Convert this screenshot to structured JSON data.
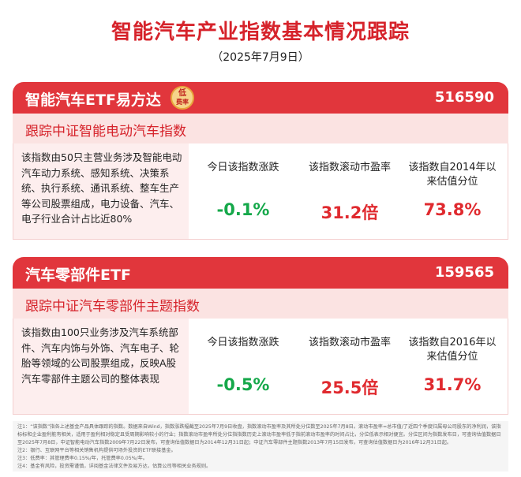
{
  "header": {
    "title": "智能汽车产业指数基本情况跟踪",
    "date": "（2025年7月9日）"
  },
  "colors": {
    "accent_red": "#e1363c",
    "title_red": "#d6232b",
    "light_pink": "#fbe3e2",
    "up_green": "#15a84a",
    "value_red": "#e02a2f"
  },
  "cards": [
    {
      "name": "智能汽车ETF易方达",
      "badge_line1": "低",
      "badge_line2": "费率",
      "code": "516590",
      "tracking": "跟踪中证智能电动汽车指数",
      "description": "该指数由50只主营业务涉及智能电动汽车动力系统、感知系统、决策系统、执行系统、通讯系统、整车生产等公司股票组成，电力设备、汽车、电子行业合计占比近80%",
      "metrics": [
        {
          "label": "今日该指数涨跌",
          "value": "-0.1%"
        },
        {
          "label": "该指数滚动市盈率",
          "value": "31.2倍"
        },
        {
          "label": "该指数自2014年以来估值分位",
          "value": "73.8%"
        }
      ]
    },
    {
      "name": "汽车零部件ETF",
      "code": "159565",
      "tracking": "跟踪中证汽车零部件主题指数",
      "description": "该指数由100只业务涉及汽车系统部件、汽车内饰与外饰、汽车电子、轮胎等领域的公司股票组成，反映A股汽车零部件主题公司的整体表现",
      "metrics": [
        {
          "label": "今日该指数涨跌",
          "value": "-0.5%"
        },
        {
          "label": "该指数滚动市盈率",
          "value": "25.5倍"
        },
        {
          "label": "该指数自2016年以来估值分位",
          "value": "31.7%"
        }
      ]
    }
  ],
  "notes": [
    "注1：“该指数”指各上述基金产品具体跟踪的指数。数据来自Wind，指数涨跌幅截至2025年7月9日收盘，指数滚动市盈率及其所处分位数至2025年7月8日。滚动市盈率=总市值/了近四个季度归属母公司股东的净利润，该指标标和企业盈利能有相关，适用于盈利相对稳定且受周期影响较小的行业；指数滚动市盈率所处分位指指数历史上滚动市盈率低于指前滚动市盈率的时间占比，分位低表示相对便宜。分位区间为指数发布日，可查询估值数据日至2025年7月8日，中证智能电动汽车指数2009年7月22日发布，可查询估值数据日为2014年12月31日起；中证汽车零部件主题指数2013年7月15日发布，可查询估值数据日为2016年12月31日起。",
    "注2：银行、互联网平台等相关销售机构提供可场外投资的ETF联接基金。",
    "注3：低费率：其管理费率0.15%/年，托管费率0.05%/年。",
    "注4：基金有风险，投资需谨慎，详阅基金法律文件及易方达，估算公司等相关业务规则。"
  ]
}
